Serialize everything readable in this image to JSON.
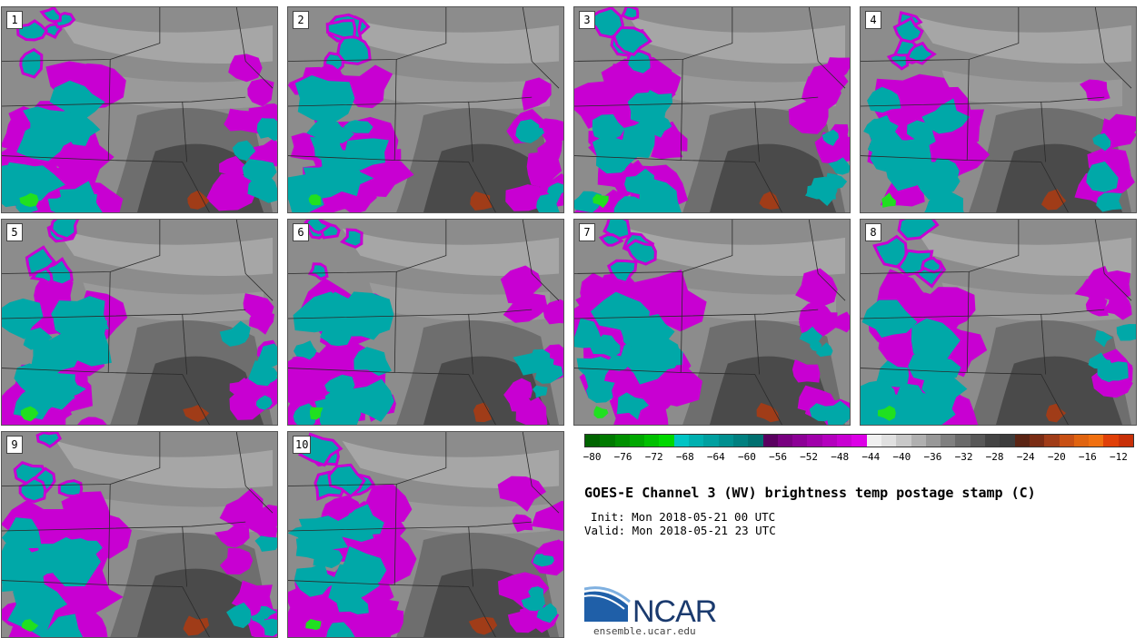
{
  "members": [
    "1",
    "2",
    "3",
    "4",
    "5",
    "6",
    "7",
    "8",
    "9",
    "10"
  ],
  "colorbar": {
    "colors": [
      "#006400",
      "#007a00",
      "#009000",
      "#00a800",
      "#00c000",
      "#00d800",
      "#00c4c4",
      "#00b0b0",
      "#00a0a0",
      "#009090",
      "#008080",
      "#007070",
      "#5a0060",
      "#780080",
      "#8c0096",
      "#a000aa",
      "#b400be",
      "#c800d2",
      "#dc00e6",
      "#f0f0f0",
      "#e0e0e0",
      "#c8c8c8",
      "#b0b0b0",
      "#989898",
      "#808080",
      "#6a6a6a",
      "#585858",
      "#444444",
      "#3c3c3c",
      "#5a2414",
      "#7a2c14",
      "#a03c18",
      "#c85014",
      "#e06410",
      "#f07010",
      "#e04008",
      "#c83008"
    ],
    "ticks": [
      "-80",
      "-76",
      "-72",
      "-68",
      "-64",
      "-60",
      "-56",
      "-52",
      "-48",
      "-44",
      "-40",
      "-36",
      "-32",
      "-28",
      "-24",
      "-20",
      "-16",
      "-12"
    ],
    "range": [
      -81,
      -10
    ]
  },
  "title": "GOES-E Channel 3 (WV) brightness temp postage stamp (C)",
  "init_label": "Init: Mon 2018-05-21 00 UTC",
  "valid_label": "Valid: Mon 2018-05-21 23 UTC",
  "logo_text": "NCAR",
  "website": "ensemble.ucar.edu",
  "colors": {
    "cloud_cyan": "#00a8a8",
    "cloud_magenta": "#c800d2",
    "dry_dark": "#4a4a4a",
    "warm": "#a03c18",
    "green": "#20e020"
  }
}
